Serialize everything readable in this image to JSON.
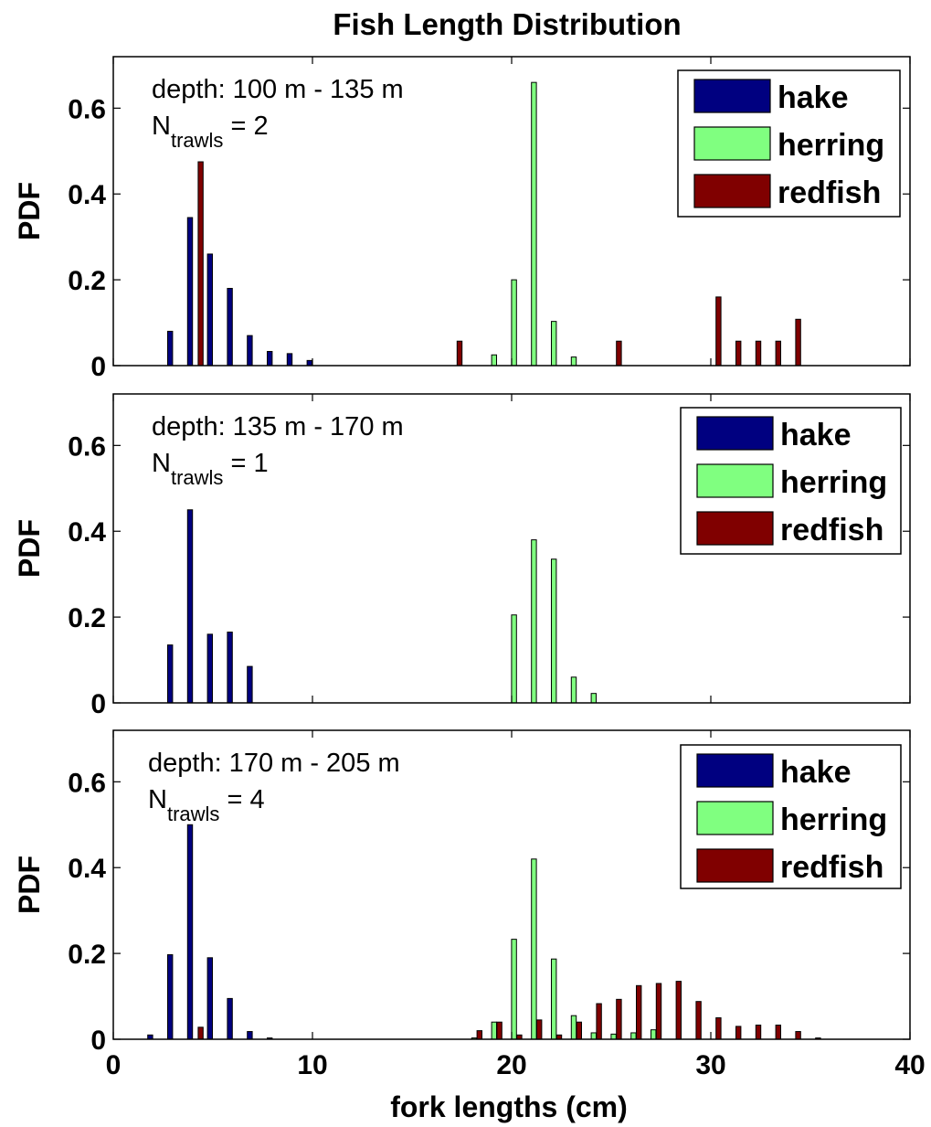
{
  "chart_data": {
    "type": "bar",
    "title": "Fish Length Distribution",
    "xlabel": "fork lengths (cm)",
    "ylabel": "PDF",
    "xlim": [
      0,
      40
    ],
    "ylim": [
      0,
      0.72
    ],
    "xticks": [
      "0",
      "10",
      "20",
      "30",
      "40"
    ],
    "yticks": [
      "0",
      "0.2",
      "0.4",
      "0.6"
    ],
    "legend_position": "top-right",
    "grid": false,
    "series_styles": [
      {
        "name": "hake",
        "color": "#000080"
      },
      {
        "name": "herring",
        "color": "#80ff80"
      },
      {
        "name": "redfish",
        "color": "#800000"
      }
    ],
    "panels": [
      {
        "depth_label": "depth: 100 m - 135 m",
        "n_label_main": "N",
        "n_label_sub": "trawls",
        "n_label_value": " = 2",
        "series": [
          {
            "name": "hake",
            "x": [
              3,
              4,
              5,
              6,
              7,
              8,
              9,
              10
            ],
            "values": [
              0.08,
              0.345,
              0.26,
              0.18,
              0.07,
              0.033,
              0.028,
              0.012
            ]
          },
          {
            "name": "herring",
            "x": [
              19,
              20,
              21,
              22,
              23
            ],
            "values": [
              0.025,
              0.2,
              0.66,
              0.103,
              0.02
            ]
          },
          {
            "name": "redfish",
            "x": [
              4,
              17,
              25,
              30,
              31,
              32,
              33,
              34
            ],
            "values": [
              0.475,
              0.057,
              0.057,
              0.16,
              0.057,
              0.057,
              0.057,
              0.108
            ]
          }
        ]
      },
      {
        "depth_label": "depth: 135 m - 170 m",
        "n_label_main": "N",
        "n_label_sub": "trawls",
        "n_label_value": " = 1",
        "series": [
          {
            "name": "hake",
            "x": [
              3,
              4,
              5,
              6,
              7
            ],
            "values": [
              0.135,
              0.45,
              0.16,
              0.165,
              0.085
            ]
          },
          {
            "name": "herring",
            "x": [
              20,
              21,
              22,
              23,
              24
            ],
            "values": [
              0.205,
              0.38,
              0.335,
              0.06,
              0.022
            ]
          },
          {
            "name": "redfish",
            "x": [],
            "values": []
          }
        ]
      },
      {
        "depth_label": "depth: 170 m - 205 m",
        "n_label_main": "N",
        "n_label_sub": "trawls",
        "n_label_value": " = 4",
        "series": [
          {
            "name": "hake",
            "x": [
              2,
              3,
              4,
              5,
              6,
              7,
              8
            ],
            "values": [
              0.01,
              0.197,
              0.5,
              0.19,
              0.095,
              0.018,
              0.003
            ]
          },
          {
            "name": "herring",
            "x": [
              18,
              19,
              20,
              21,
              22,
              23,
              24,
              25,
              26,
              27
            ],
            "values": [
              0.003,
              0.04,
              0.233,
              0.42,
              0.187,
              0.055,
              0.015,
              0.012,
              0.015,
              0.022
            ]
          },
          {
            "name": "redfish",
            "x": [
              4,
              18,
              19,
              20,
              21,
              22,
              23,
              24,
              25,
              26,
              27,
              28,
              29,
              30,
              31,
              32,
              33,
              34,
              35
            ],
            "values": [
              0.028,
              0.02,
              0.04,
              0.01,
              0.045,
              0.01,
              0.04,
              0.083,
              0.093,
              0.125,
              0.13,
              0.135,
              0.088,
              0.05,
              0.03,
              0.033,
              0.033,
              0.018,
              0.003
            ]
          }
        ]
      }
    ]
  }
}
